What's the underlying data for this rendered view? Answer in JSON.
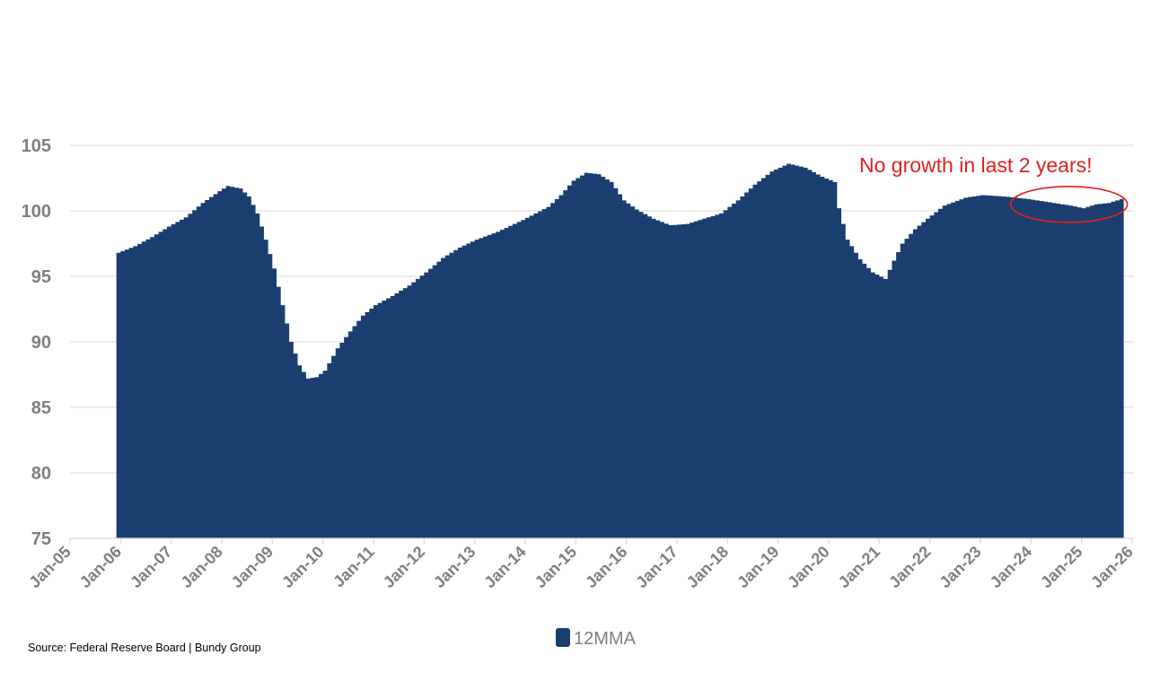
{
  "chart_data": {
    "type": "area",
    "series": [
      {
        "name": "12MMA",
        "color": "#1a3e6f",
        "points": [
          [
            "2005-12",
            96.8
          ],
          [
            "2006-04",
            97.3
          ],
          [
            "2006-08",
            98.0
          ],
          [
            "2006-12",
            98.8
          ],
          [
            "2007-04",
            99.5
          ],
          [
            "2007-08",
            100.6
          ],
          [
            "2007-12",
            101.5
          ],
          [
            "2008-02",
            101.9
          ],
          [
            "2008-05",
            101.7
          ],
          [
            "2008-07",
            101.1
          ],
          [
            "2008-09",
            99.8
          ],
          [
            "2008-11",
            97.8
          ],
          [
            "2009-01",
            95.6
          ],
          [
            "2009-03",
            92.8
          ],
          [
            "2009-05",
            90.0
          ],
          [
            "2009-07",
            88.2
          ],
          [
            "2009-09",
            87.2
          ],
          [
            "2009-11",
            87.3
          ],
          [
            "2010-01",
            87.8
          ],
          [
            "2010-04",
            89.5
          ],
          [
            "2010-07",
            90.8
          ],
          [
            "2010-10",
            92.0
          ],
          [
            "2011-01",
            92.8
          ],
          [
            "2011-05",
            93.5
          ],
          [
            "2011-09",
            94.3
          ],
          [
            "2012-01",
            95.3
          ],
          [
            "2012-05",
            96.4
          ],
          [
            "2012-09",
            97.2
          ],
          [
            "2013-01",
            97.8
          ],
          [
            "2013-06",
            98.4
          ],
          [
            "2013-12",
            99.3
          ],
          [
            "2014-06",
            100.3
          ],
          [
            "2014-09",
            101.2
          ],
          [
            "2014-12",
            102.3
          ],
          [
            "2015-03",
            102.9
          ],
          [
            "2015-06",
            102.8
          ],
          [
            "2015-09",
            102.2
          ],
          [
            "2015-12",
            100.8
          ],
          [
            "2016-03",
            100.1
          ],
          [
            "2016-07",
            99.4
          ],
          [
            "2016-11",
            98.9
          ],
          [
            "2017-03",
            99.0
          ],
          [
            "2017-07",
            99.4
          ],
          [
            "2017-11",
            99.8
          ],
          [
            "2018-03",
            100.8
          ],
          [
            "2018-07",
            102.0
          ],
          [
            "2018-11",
            103.0
          ],
          [
            "2019-03",
            103.6
          ],
          [
            "2019-07",
            103.3
          ],
          [
            "2019-11",
            102.6
          ],
          [
            "2020-02",
            102.2
          ],
          [
            "2020-03",
            100.2
          ],
          [
            "2020-05",
            97.8
          ],
          [
            "2020-08",
            96.3
          ],
          [
            "2020-11",
            95.3
          ],
          [
            "2021-02",
            94.8
          ],
          [
            "2021-04",
            96.2
          ],
          [
            "2021-06",
            97.5
          ],
          [
            "2021-09",
            98.6
          ],
          [
            "2021-12",
            99.4
          ],
          [
            "2022-04",
            100.4
          ],
          [
            "2022-09",
            101.0
          ],
          [
            "2023-01",
            101.2
          ],
          [
            "2023-06",
            101.1
          ],
          [
            "2023-12",
            100.9
          ],
          [
            "2024-06",
            100.6
          ],
          [
            "2024-10",
            100.4
          ],
          [
            "2025-01",
            100.2
          ],
          [
            "2025-04",
            100.5
          ],
          [
            "2025-07",
            100.6
          ],
          [
            "2025-10",
            100.9
          ]
        ]
      }
    ],
    "title": "",
    "xlabel": "",
    "ylabel": "",
    "ylim": [
      75,
      105
    ],
    "yticks": [
      75,
      80,
      85,
      90,
      95,
      100,
      105
    ],
    "xlim": [
      "2005-01",
      "2026-01"
    ],
    "xtick_labels": [
      "Jan-05",
      "Jan-06",
      "Jan-07",
      "Jan-08",
      "Jan-09",
      "Jan-10",
      "Jan-11",
      "Jan-12",
      "Jan-13",
      "Jan-14",
      "Jan-15",
      "Jan-16",
      "Jan-17",
      "Jan-18",
      "Jan-19",
      "Jan-20",
      "Jan-21",
      "Jan-22",
      "Jan-23",
      "Jan-24",
      "Jan-25",
      "Jan-26"
    ],
    "grid": true,
    "legend": {
      "position": "bottom",
      "entries": [
        "12MMA"
      ]
    },
    "annotation": {
      "text": "No growth in last 2 years!",
      "color": "#e02020",
      "highlight_range": [
        "2023-09",
        "2025-10"
      ]
    }
  },
  "source_text": "Source: Federal Reserve Board  |  Bundy Group"
}
